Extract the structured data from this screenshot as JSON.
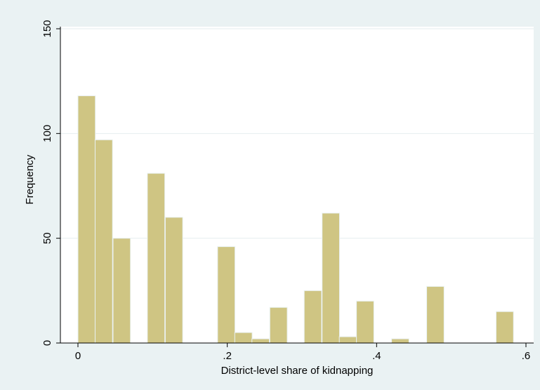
{
  "chart_data": {
    "type": "bar",
    "title": "",
    "xlabel": "District-level share of kidnapping",
    "ylabel": "Frequency",
    "xlim": [
      0,
      0.6
    ],
    "ylim": [
      0,
      150
    ],
    "bin_width": 0.0233,
    "x_ticks": [
      {
        "value": 0,
        "label": "0"
      },
      {
        "value": 0.2,
        "label": ".2"
      },
      {
        "value": 0.4,
        "label": ".4"
      },
      {
        "value": 0.6,
        "label": ".6"
      }
    ],
    "y_ticks": [
      {
        "value": 0,
        "label": "0"
      },
      {
        "value": 50,
        "label": "50"
      },
      {
        "value": 100,
        "label": "100"
      },
      {
        "value": 150,
        "label": "150"
      }
    ],
    "grid": true,
    "bins": [
      {
        "x": 0.0,
        "y": 118
      },
      {
        "x": 0.023,
        "y": 97
      },
      {
        "x": 0.047,
        "y": 50
      },
      {
        "x": 0.093,
        "y": 81
      },
      {
        "x": 0.117,
        "y": 60
      },
      {
        "x": 0.187,
        "y": 46
      },
      {
        "x": 0.21,
        "y": 5
      },
      {
        "x": 0.233,
        "y": 2
      },
      {
        "x": 0.257,
        "y": 17
      },
      {
        "x": 0.303,
        "y": 25
      },
      {
        "x": 0.327,
        "y": 62
      },
      {
        "x": 0.35,
        "y": 3
      },
      {
        "x": 0.373,
        "y": 20
      },
      {
        "x": 0.42,
        "y": 2
      },
      {
        "x": 0.467,
        "y": 27
      },
      {
        "x": 0.56,
        "y": 15
      }
    ],
    "colors": {
      "bar_fill": "#cfc583",
      "bar_stroke": "#eaf2f3",
      "plot_background": "#ffffff",
      "outer_background": "#eaf2f3",
      "gridline": "#e6eeef",
      "axis": "#000000"
    }
  }
}
